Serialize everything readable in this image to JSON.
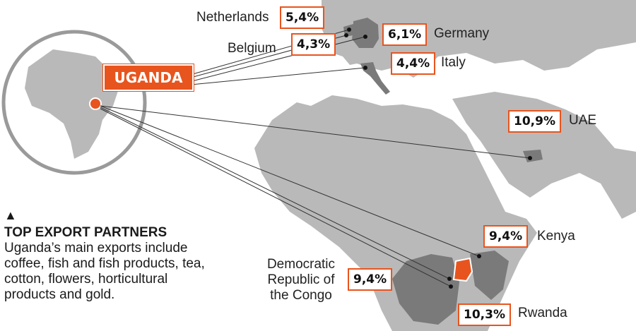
{
  "colors": {
    "accent": "#e8541e",
    "land_base": "#b9b9b9",
    "land_partner": "#7a7a7a",
    "sea": "#ffffff",
    "circle": "#9a9a9a"
  },
  "highlight_country": "UGANDA",
  "partners": [
    {
      "name": "Netherlands",
      "value": "5,4%"
    },
    {
      "name": "Belgium",
      "value": "4,3%"
    },
    {
      "name": "Germany",
      "value": "6,1%"
    },
    {
      "name": "Italy",
      "value": "4,4%"
    },
    {
      "name": "UAE",
      "value": "10,9%"
    },
    {
      "name": "Kenya",
      "value": "9,4%"
    },
    {
      "name": "Democratic Republic of the Congo",
      "value": "9,4%"
    },
    {
      "name": "Rwanda",
      "value": "10,3%"
    }
  ],
  "legend": {
    "marker": "▲",
    "title": "TOP EXPORT PARTNERS",
    "text": "Uganda’s main exports include coffee, fish and fish products, tea, cotton, flowers, horticultural products and gold."
  }
}
